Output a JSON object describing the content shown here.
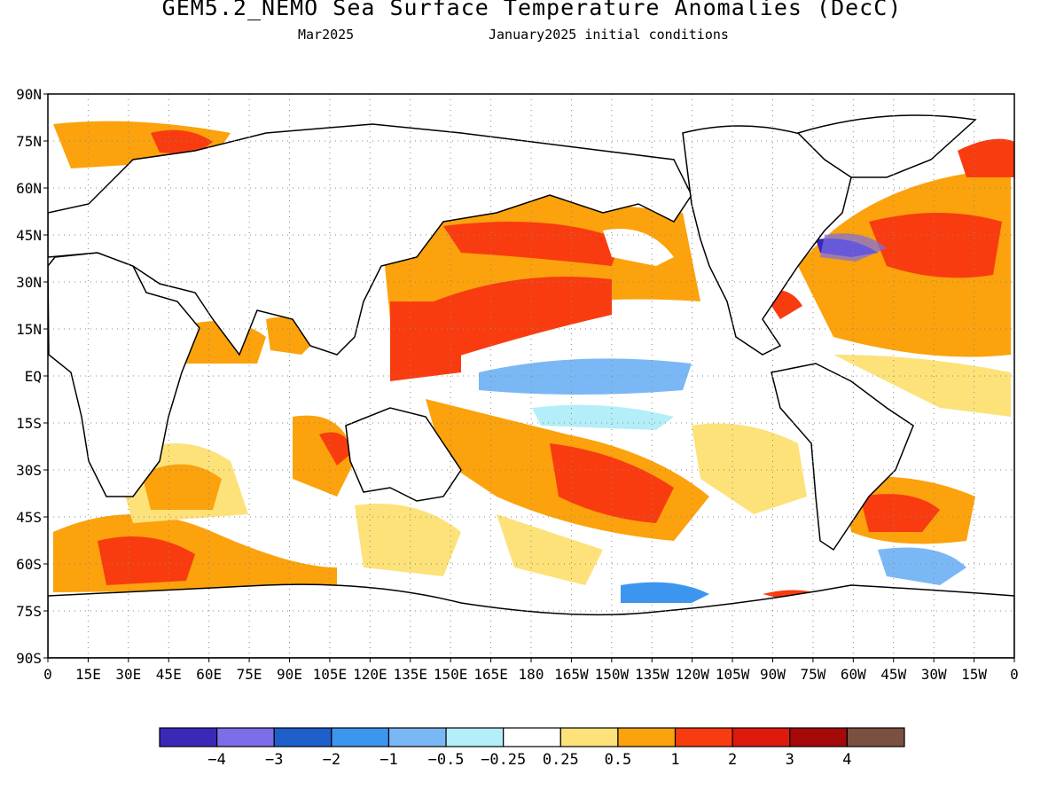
{
  "title": "GEM5.2_NEMO Sea Surface Temperature Anomalies (DecC)",
  "subtitle_left": "Mar2025",
  "subtitle_right": "January2025 initial conditions",
  "map": {
    "lat_labels": [
      "90N",
      "75N",
      "60N",
      "45N",
      "30N",
      "15N",
      "EQ",
      "15S",
      "30S",
      "45S",
      "60S",
      "75S",
      "90S"
    ],
    "lon_labels": [
      "0",
      "15E",
      "30E",
      "45E",
      "60E",
      "75E",
      "90E",
      "105E",
      "120E",
      "135E",
      "150E",
      "165E",
      "180",
      "165W",
      "150W",
      "135W",
      "120W",
      "105W",
      "90W",
      "75W",
      "60W",
      "45W",
      "30W",
      "15W",
      "0"
    ],
    "grid": "dotted",
    "land_color": "#ffffff"
  },
  "colorbar": {
    "tick_labels": [
      "-4",
      "-3",
      "-2",
      "-1",
      "-0.5",
      "-0.25",
      "0.25",
      "0.5",
      "1",
      "2",
      "3",
      "4"
    ],
    "colors": [
      "#3b28b8",
      "#7b6ee8",
      "#1e5fcc",
      "#3c96f0",
      "#7ab8f5",
      "#b4eef8",
      "#ffffff",
      "#fde27a",
      "#fba20c",
      "#f93c10",
      "#dd1a0c",
      "#a50a08",
      "#7a5040"
    ]
  }
}
